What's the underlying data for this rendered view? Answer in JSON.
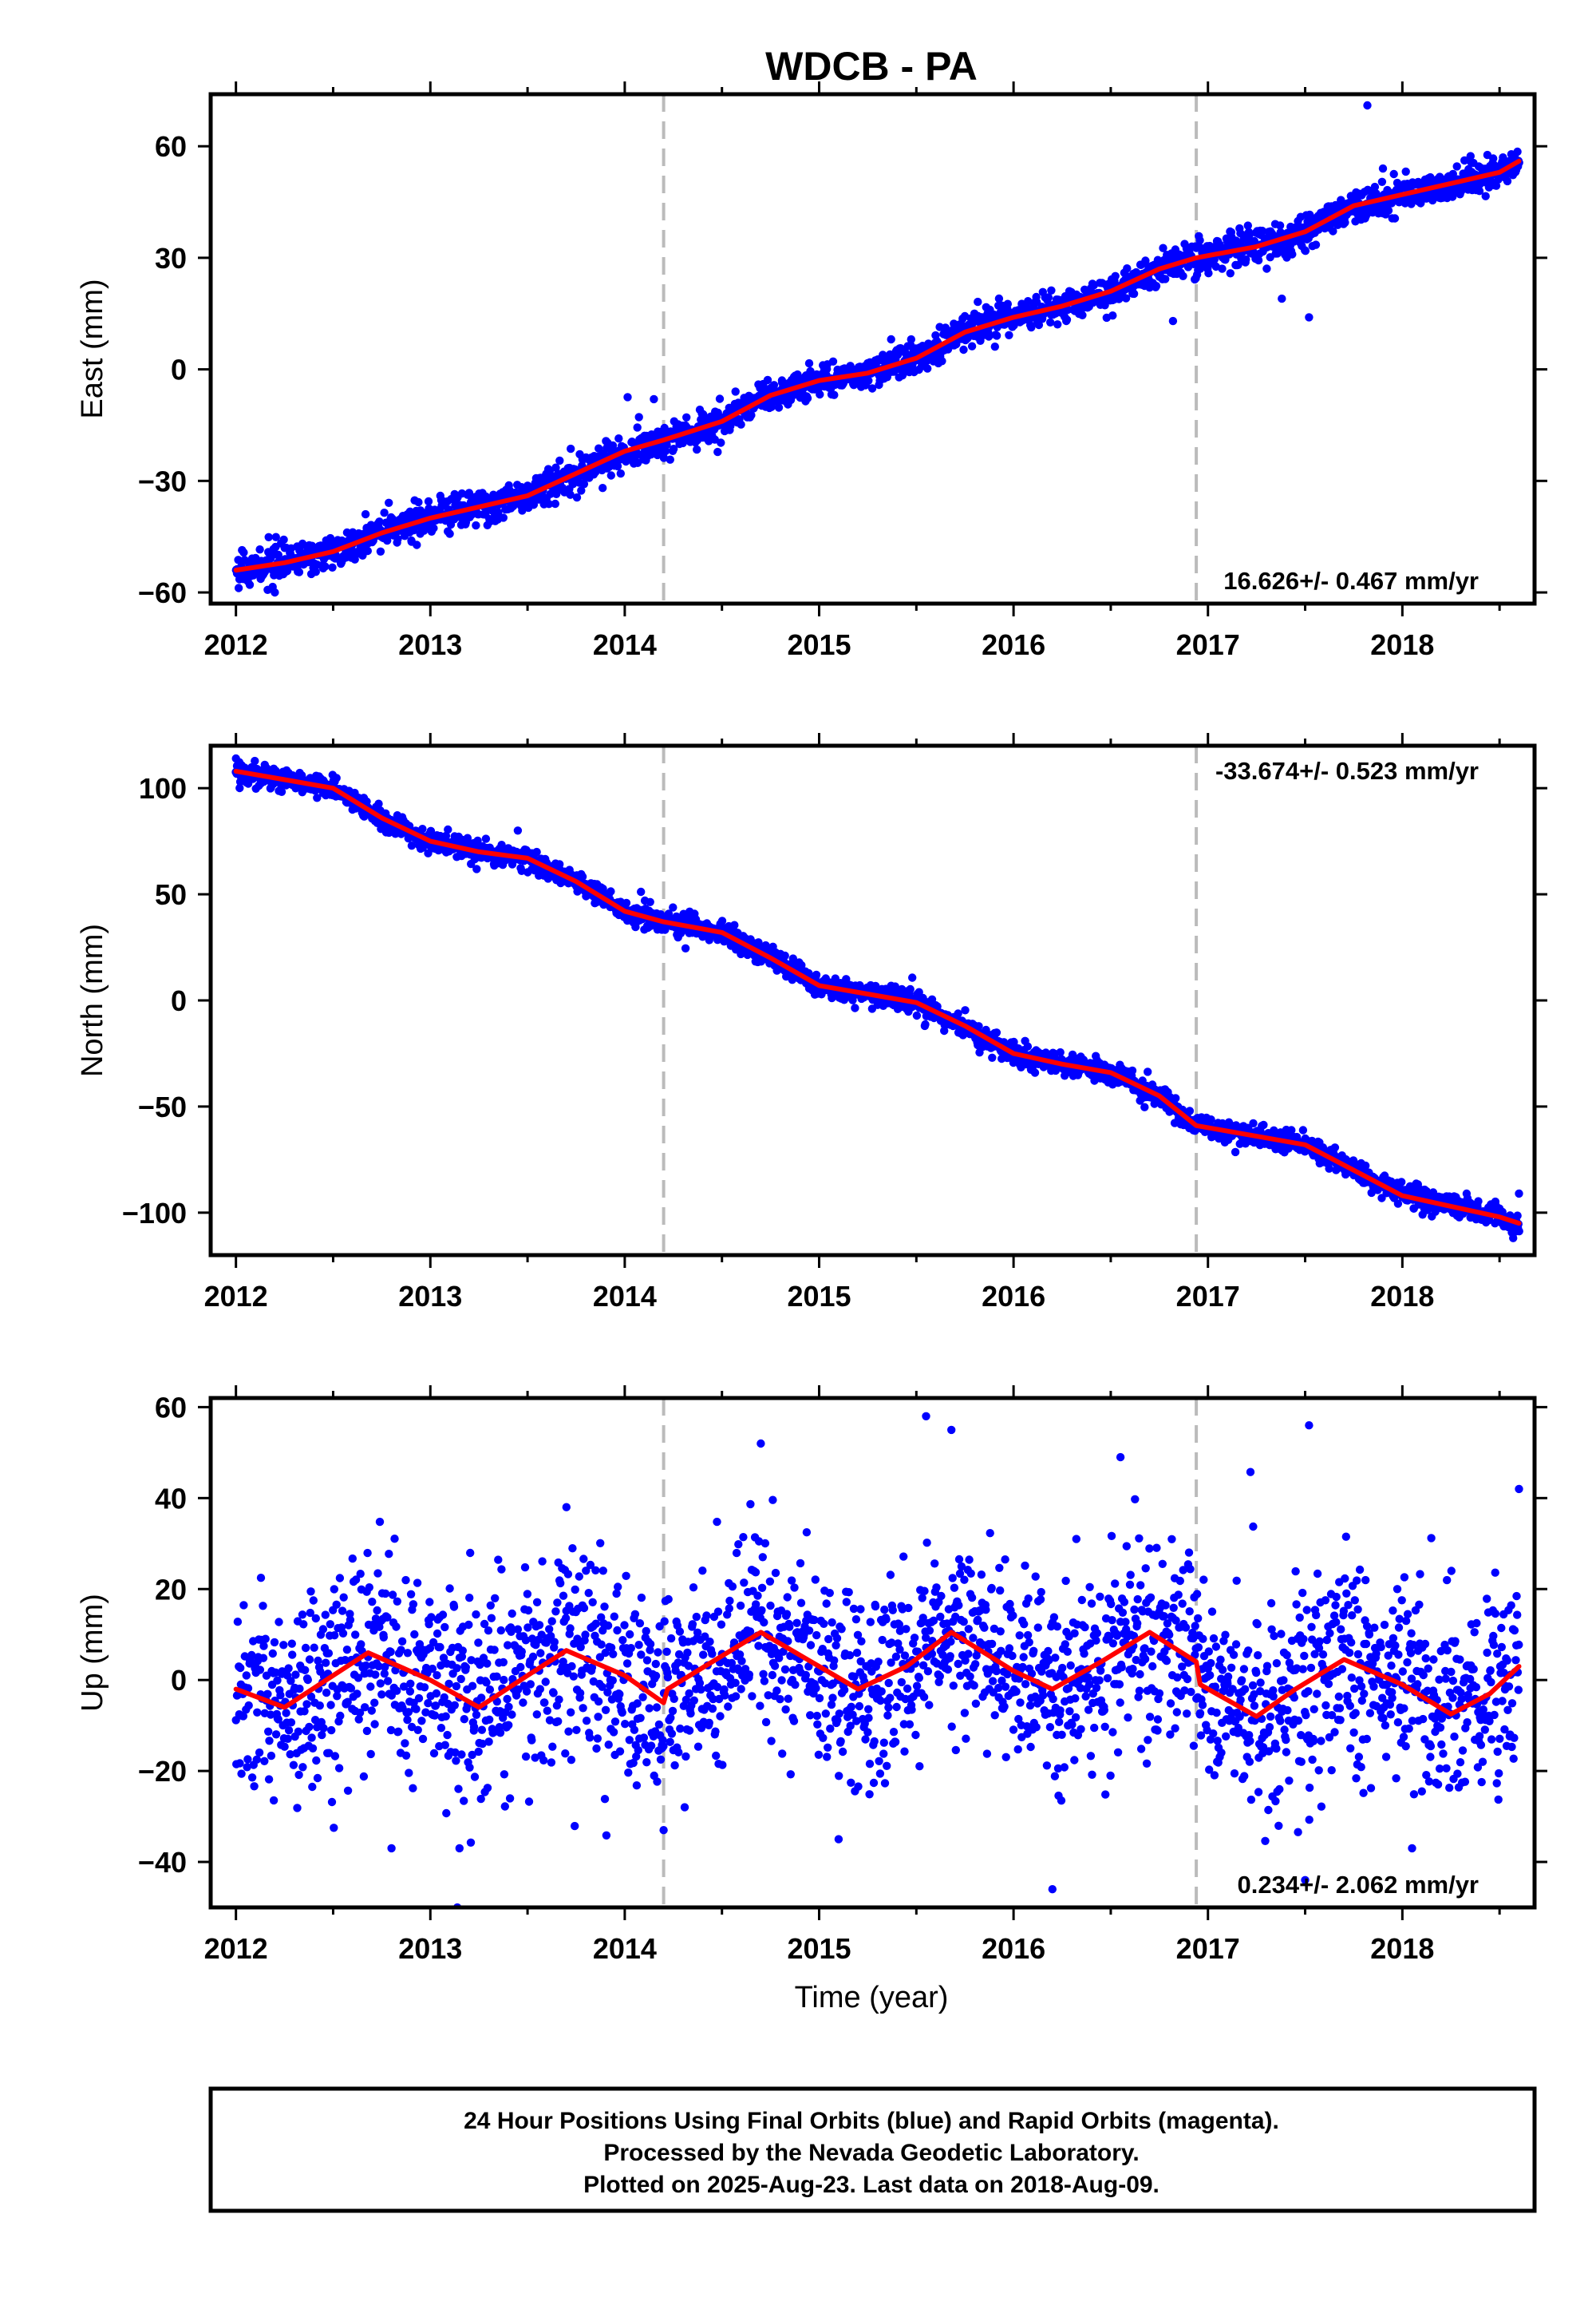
{
  "title": "WDCB - PA",
  "xlabel": "Time (year)",
  "x_tick_labels": [
    "2012",
    "2013",
    "2014",
    "2015",
    "2016",
    "2017",
    "2018"
  ],
  "footer": {
    "line1": "24 Hour Positions Using Final Orbits (blue) and Rapid Orbits (magenta).",
    "line2": "Processed by the Nevada Geodetic Laboratory.",
    "line3": "Plotted on 2025-Aug-23. Last data on 2018-Aug-09."
  },
  "colors": {
    "points": "#0000ff",
    "model": "#ff0000",
    "dashed": "#bbbbbb",
    "frame": "#000000"
  },
  "chart_data": [
    {
      "type": "scatter",
      "ylabel": "East (mm)",
      "rate_label": "16.626+/- 0.467 mm/yr",
      "rate_position": "bottom-right",
      "xlim": [
        2011.87,
        2018.68
      ],
      "ylim": [
        -63,
        74
      ],
      "yticks": [
        -60,
        -30,
        0,
        30,
        60
      ],
      "y_tick_labels": [
        "−60",
        "−30",
        "0",
        "30",
        "60"
      ],
      "equipment_change_years": [
        2014.2,
        2016.94
      ],
      "start_year": 2012.0,
      "end_year": 2018.6,
      "model_line": {
        "name": "model",
        "points": [
          [
            2012.0,
            -54
          ],
          [
            2012.25,
            -52
          ],
          [
            2012.5,
            -49
          ],
          [
            2012.75,
            -44
          ],
          [
            2013.0,
            -40
          ],
          [
            2013.25,
            -37
          ],
          [
            2013.5,
            -34
          ],
          [
            2013.75,
            -28
          ],
          [
            2014.0,
            -22
          ],
          [
            2014.2,
            -19
          ],
          [
            2014.5,
            -14
          ],
          [
            2014.75,
            -7
          ],
          [
            2015.0,
            -3
          ],
          [
            2015.25,
            -1
          ],
          [
            2015.5,
            3
          ],
          [
            2015.75,
            10
          ],
          [
            2016.0,
            14
          ],
          [
            2016.25,
            17
          ],
          [
            2016.5,
            21
          ],
          [
            2016.75,
            27
          ],
          [
            2016.94,
            30
          ],
          [
            2017.25,
            33
          ],
          [
            2017.5,
            37
          ],
          [
            2017.75,
            44
          ],
          [
            2018.0,
            47
          ],
          [
            2018.25,
            50
          ],
          [
            2018.5,
            53
          ],
          [
            2018.6,
            56
          ]
        ]
      },
      "scatter": {
        "name": "daily positions",
        "noise_mm": 2.2,
        "outliers": [
          [
            2017.82,
            71
          ],
          [
            2017.52,
            14
          ],
          [
            2017.38,
            19
          ],
          [
            2016.82,
            13
          ],
          [
            2016.7,
            22
          ],
          [
            2012.2,
            -60
          ],
          [
            2014.15,
            -8
          ],
          [
            2017.9,
            54
          ]
        ]
      }
    },
    {
      "type": "scatter",
      "ylabel": "North (mm)",
      "rate_label": "-33.674+/- 0.523 mm/yr",
      "rate_position": "top-right",
      "xlim": [
        2011.87,
        2018.68
      ],
      "ylim": [
        -120,
        120
      ],
      "yticks": [
        -100,
        -50,
        0,
        50,
        100
      ],
      "y_tick_labels": [
        "−100",
        "−50",
        "0",
        "50",
        "100"
      ],
      "equipment_change_years": [
        2014.2,
        2016.94
      ],
      "start_year": 2012.0,
      "end_year": 2018.6,
      "model_line": {
        "name": "model",
        "points": [
          [
            2012.0,
            108
          ],
          [
            2012.25,
            104
          ],
          [
            2012.5,
            100
          ],
          [
            2012.75,
            86
          ],
          [
            2013.0,
            75
          ],
          [
            2013.25,
            70
          ],
          [
            2013.5,
            67
          ],
          [
            2013.75,
            56
          ],
          [
            2014.0,
            42
          ],
          [
            2014.2,
            37
          ],
          [
            2014.5,
            32
          ],
          [
            2014.75,
            20
          ],
          [
            2015.0,
            7
          ],
          [
            2015.25,
            3
          ],
          [
            2015.5,
            -1
          ],
          [
            2015.75,
            -12
          ],
          [
            2016.0,
            -25
          ],
          [
            2016.25,
            -30
          ],
          [
            2016.5,
            -34
          ],
          [
            2016.75,
            -45
          ],
          [
            2016.94,
            -59
          ],
          [
            2017.25,
            -64
          ],
          [
            2017.5,
            -68
          ],
          [
            2017.75,
            -80
          ],
          [
            2018.0,
            -92
          ],
          [
            2018.25,
            -97
          ],
          [
            2018.5,
            -102
          ],
          [
            2018.6,
            -105
          ]
        ]
      },
      "scatter": {
        "name": "daily positions",
        "noise_mm": 2.6,
        "outliers": [
          [
            2012.0,
            114
          ],
          [
            2018.57,
            -112
          ],
          [
            2018.6,
            -91
          ],
          [
            2013.45,
            80
          ]
        ]
      }
    },
    {
      "type": "scatter",
      "ylabel": "Up (mm)",
      "rate_label": "0.234+/- 2.062 mm/yr",
      "rate_position": "bottom-right",
      "xlim": [
        2011.87,
        2018.68
      ],
      "ylim": [
        -50,
        62
      ],
      "yticks": [
        -40,
        -20,
        0,
        20,
        40,
        60
      ],
      "y_tick_labels": [
        "−40",
        "−20",
        "0",
        "20",
        "40",
        "60"
      ],
      "equipment_change_years": [
        2014.2,
        2016.94
      ],
      "start_year": 2012.0,
      "end_year": 2018.6,
      "model_line": {
        "name": "model",
        "points": [
          [
            2012.0,
            -2
          ],
          [
            2012.25,
            -6
          ],
          [
            2012.5,
            1
          ],
          [
            2012.68,
            6
          ],
          [
            2013.0,
            0
          ],
          [
            2013.25,
            -6
          ],
          [
            2013.5,
            1
          ],
          [
            2013.7,
            6.5
          ],
          [
            2014.0,
            1
          ],
          [
            2014.2,
            -5
          ],
          [
            2014.22,
            -2
          ],
          [
            2014.45,
            4
          ],
          [
            2014.7,
            10.5
          ],
          [
            2015.0,
            3
          ],
          [
            2015.2,
            -2
          ],
          [
            2015.45,
            3
          ],
          [
            2015.68,
            10.5
          ],
          [
            2016.0,
            2
          ],
          [
            2016.2,
            -2
          ],
          [
            2016.45,
            4
          ],
          [
            2016.7,
            10.5
          ],
          [
            2016.94,
            4
          ],
          [
            2016.96,
            -1
          ],
          [
            2017.25,
            -8
          ],
          [
            2017.45,
            -2
          ],
          [
            2017.7,
            4.5
          ],
          [
            2018.0,
            -1
          ],
          [
            2018.25,
            -7.5
          ],
          [
            2018.45,
            -3
          ],
          [
            2018.6,
            3
          ]
        ]
      },
      "scatter": {
        "name": "daily positions",
        "noise_mm": 11,
        "outliers": [
          [
            2015.55,
            58
          ],
          [
            2017.52,
            56
          ],
          [
            2014.7,
            52
          ],
          [
            2015.68,
            55
          ],
          [
            2016.55,
            49
          ],
          [
            2018.6,
            42
          ],
          [
            2013.7,
            38
          ],
          [
            2016.2,
            -46
          ],
          [
            2017.5,
            -44
          ],
          [
            2012.8,
            -37
          ],
          [
            2018.05,
            -37
          ],
          [
            2013.15,
            -37
          ],
          [
            2014.2,
            -33
          ],
          [
            2015.1,
            -35
          ]
        ]
      }
    }
  ]
}
